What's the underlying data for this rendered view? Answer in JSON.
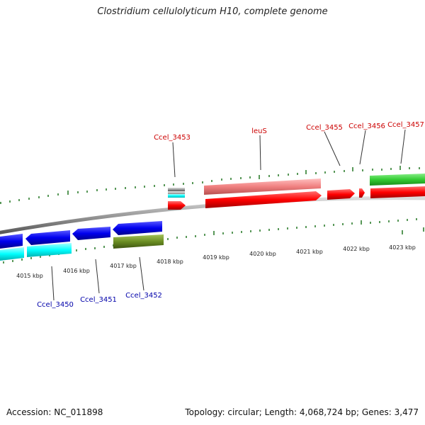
{
  "title": "Clostridium cellulolyticum H10, complete genome",
  "footer": {
    "accession": "Accession: NC_011898",
    "summary": "Topology: circular; Length: 4,068,724 bp; Genes: 3,477"
  },
  "colors": {
    "forward_cds": "#ff0000",
    "forward_gene": "#f08080",
    "forward_rna": "#33cc33",
    "reverse_cds": "#0000ee",
    "reverse_gene": "#00ffff",
    "reverse_other": "#6b8e23",
    "backbone": "#888888"
  },
  "scale": {
    "labels": [
      "4015 kbp",
      "4016 kbp",
      "4017 kbp",
      "4018 kbp",
      "4019 kbp",
      "4020 kbp",
      "4021 kbp",
      "4022 kbp",
      "4023 kbp"
    ]
  },
  "gene_labels": {
    "top": [
      "Ccel_3453",
      "leuS",
      "Ccel_3455",
      "Ccel_3456",
      "Ccel_3457"
    ],
    "bottom": [
      "Ccel_3450",
      "Ccel_3451",
      "Ccel_3452"
    ]
  }
}
